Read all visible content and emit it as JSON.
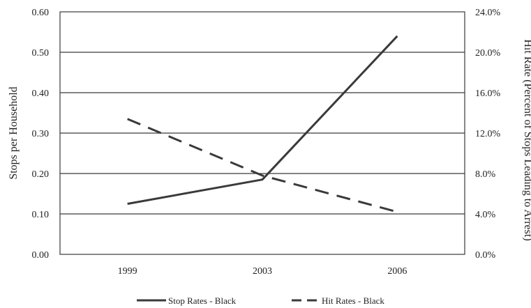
{
  "chart_data": {
    "type": "line",
    "x": [
      "1999",
      "2003",
      "2006"
    ],
    "y_left": {
      "label": "Stops per Household",
      "ylim": [
        0,
        0.6
      ],
      "ticks": [
        "0.00",
        "0.10",
        "0.20",
        "0.30",
        "0.40",
        "0.50",
        "0.60"
      ]
    },
    "y_right": {
      "label": "Hit Rate (Percent of Stops Leading to Arrest)",
      "ylim": [
        0,
        24
      ],
      "ticks": [
        "0.0%",
        "4.0%",
        "8.0%",
        "12.0%",
        "16.0%",
        "20.0%",
        "24.0%"
      ]
    },
    "series": [
      {
        "name": "Stop Rates - Black",
        "axis": "left",
        "style": "solid",
        "color": "#3a3a3a",
        "values": [
          0.125,
          0.185,
          0.54
        ]
      },
      {
        "name": "Hit Rates - Black",
        "axis": "right",
        "style": "dashed",
        "color": "#3a3a3a",
        "values": [
          13.4,
          7.8,
          4.2
        ]
      }
    ],
    "grid": true,
    "legend_position": "bottom"
  }
}
